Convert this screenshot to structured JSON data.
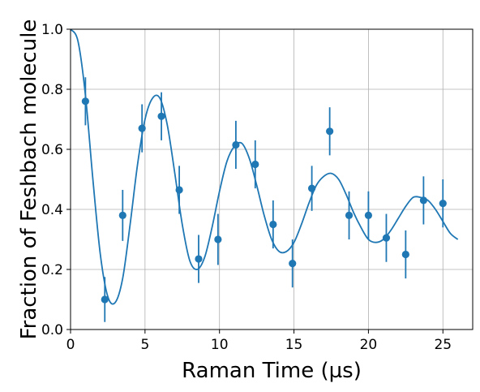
{
  "chart_data": {
    "type": "scatter",
    "xlabel": "Raman Time (µs)",
    "ylabel": "Fraction of Feshbach molecule",
    "xlim": [
      0,
      27
    ],
    "ylim": [
      0,
      1.0
    ],
    "grid": true,
    "x_ticks": [
      "0",
      "5",
      "10",
      "15",
      "20",
      "25"
    ],
    "y_ticks": [
      "0.0",
      "0.2",
      "0.4",
      "0.6",
      "0.8",
      "1.0"
    ],
    "color": "#1f77b4",
    "points": [
      {
        "x": 1.0,
        "y": 0.76,
        "err": 0.08
      },
      {
        "x": 2.3,
        "y": 0.1,
        "err": 0.075
      },
      {
        "x": 3.5,
        "y": 0.38,
        "err": 0.085
      },
      {
        "x": 4.8,
        "y": 0.67,
        "err": 0.08
      },
      {
        "x": 6.1,
        "y": 0.71,
        "err": 0.08
      },
      {
        "x": 7.3,
        "y": 0.465,
        "err": 0.08
      },
      {
        "x": 8.6,
        "y": 0.235,
        "err": 0.08
      },
      {
        "x": 9.9,
        "y": 0.3,
        "err": 0.085
      },
      {
        "x": 11.1,
        "y": 0.615,
        "err": 0.08
      },
      {
        "x": 12.4,
        "y": 0.55,
        "err": 0.08
      },
      {
        "x": 13.6,
        "y": 0.35,
        "err": 0.08
      },
      {
        "x": 14.9,
        "y": 0.22,
        "err": 0.08
      },
      {
        "x": 16.2,
        "y": 0.47,
        "err": 0.075
      },
      {
        "x": 17.4,
        "y": 0.66,
        "err": 0.08
      },
      {
        "x": 18.7,
        "y": 0.38,
        "err": 0.08
      },
      {
        "x": 20.0,
        "y": 0.38,
        "err": 0.08
      },
      {
        "x": 21.2,
        "y": 0.305,
        "err": 0.08
      },
      {
        "x": 22.5,
        "y": 0.25,
        "err": 0.08
      },
      {
        "x": 23.7,
        "y": 0.43,
        "err": 0.08
      },
      {
        "x": 25.0,
        "y": 0.42,
        "err": 0.08
      }
    ],
    "fit_curve": {
      "x": [
        0,
        0.5,
        1.0,
        1.5,
        2.0,
        2.5,
        3.0,
        3.5,
        4.0,
        4.5,
        5.0,
        5.5,
        6.0,
        6.5,
        7.0,
        7.5,
        8.0,
        8.5,
        9.0,
        9.5,
        10.0,
        10.5,
        11.0,
        11.5,
        12.0,
        12.5,
        13.0,
        13.5,
        14.0,
        14.5,
        15.0,
        15.5,
        16.0,
        16.5,
        17.0,
        17.5,
        18.0,
        18.5,
        19.0,
        19.5,
        20.0,
        20.5,
        21.0,
        21.5,
        22.0,
        22.5,
        23.0,
        23.5,
        24.0,
        24.5,
        25.0,
        25.5,
        26.0
      ],
      "y": [
        1.0,
        0.96,
        0.78,
        0.5,
        0.25,
        0.11,
        0.09,
        0.17,
        0.35,
        0.55,
        0.7,
        0.77,
        0.77,
        0.68,
        0.52,
        0.35,
        0.23,
        0.2,
        0.24,
        0.34,
        0.46,
        0.56,
        0.61,
        0.62,
        0.57,
        0.48,
        0.38,
        0.3,
        0.26,
        0.26,
        0.29,
        0.35,
        0.42,
        0.48,
        0.51,
        0.52,
        0.5,
        0.45,
        0.39,
        0.34,
        0.3,
        0.29,
        0.3,
        0.33,
        0.37,
        0.41,
        0.44,
        0.44,
        0.43,
        0.4,
        0.36,
        0.32,
        0.3
      ]
    }
  }
}
